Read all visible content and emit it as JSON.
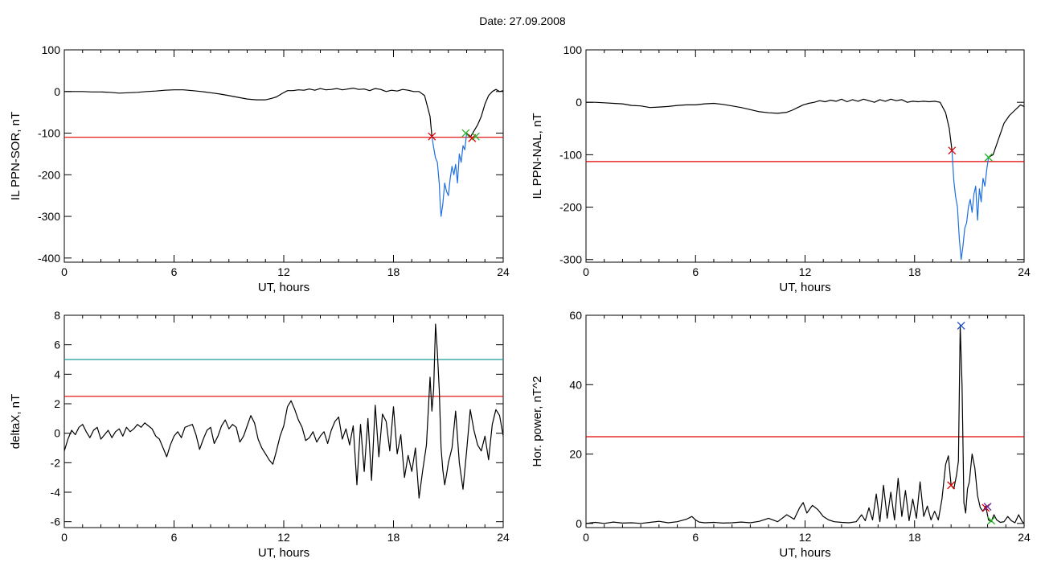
{
  "title": "Date:  27.09.2008",
  "chart_data": [
    {
      "id": "sor",
      "type": "line",
      "xlabel": "UT, hours",
      "ylabel": "IL PPN-SOR, nT",
      "xlim": [
        0,
        24
      ],
      "ylim": [
        -410,
        100
      ],
      "xticks": [
        0,
        6,
        12,
        18,
        24
      ],
      "yticks": [
        100,
        0,
        -100,
        -200,
        -300,
        -400
      ],
      "thresholds": [
        {
          "y": -110,
          "color": "#e00000"
        }
      ],
      "series": [
        {
          "color": "#000000",
          "x": [
            0,
            0.5,
            1,
            1.5,
            2,
            2.5,
            3,
            3.5,
            4,
            4.5,
            5,
            5.5,
            6,
            6.5,
            7,
            7.5,
            8,
            8.5,
            9,
            9.5,
            10,
            10.5,
            11,
            11.3,
            11.6,
            11.9,
            12.2,
            12.5,
            12.8,
            13.1,
            13.4,
            13.7,
            14,
            14.3,
            14.6,
            14.9,
            15.2,
            15.5,
            15.8,
            16.1,
            16.4,
            16.7,
            17,
            17.3,
            17.6,
            17.9,
            18.2,
            18.5,
            18.8,
            19.1,
            19.4,
            19.7,
            20,
            20.1
          ],
          "y": [
            0,
            0,
            0,
            -1,
            -1,
            -2,
            -4,
            -3,
            -2,
            0,
            1,
            3,
            4,
            4,
            2,
            0,
            -3,
            -6,
            -10,
            -14,
            -18,
            -20,
            -20,
            -17,
            -13,
            -5,
            2,
            2,
            4,
            3,
            6,
            3,
            7,
            4,
            5,
            7,
            4,
            6,
            8,
            5,
            6,
            2,
            7,
            5,
            0,
            3,
            1,
            5,
            3,
            0,
            0,
            -10,
            -60,
            -108
          ]
        },
        {
          "color": "#1f6fe0",
          "x": [
            20.1,
            20.2,
            20.3,
            20.4,
            20.5,
            20.55,
            20.6,
            20.7,
            20.8,
            20.9,
            21.0,
            21.1,
            21.2,
            21.3,
            21.4,
            21.5,
            21.6,
            21.7,
            21.8,
            21.9,
            22.0
          ],
          "y": [
            -108,
            -135,
            -160,
            -170,
            -220,
            -265,
            -300,
            -270,
            -220,
            -240,
            -250,
            -210,
            -180,
            -200,
            -175,
            -220,
            -150,
            -170,
            -130,
            -140,
            -100
          ]
        },
        {
          "color": "#000000",
          "x": [
            22.0,
            22.2,
            22.4,
            22.6,
            22.8,
            23.0,
            23.2,
            23.4,
            23.6,
            23.8,
            24
          ],
          "y": [
            -100,
            -110,
            -95,
            -80,
            -60,
            -30,
            -10,
            0,
            5,
            0,
            2
          ]
        }
      ],
      "markers": [
        {
          "x": 20.1,
          "y": -108,
          "color": "#e00000"
        },
        {
          "x": 21.95,
          "y": -100,
          "color": "#22b522"
        },
        {
          "x": 22.3,
          "y": -112,
          "color": "#e00000"
        },
        {
          "x": 22.5,
          "y": -108,
          "color": "#22b522"
        }
      ]
    },
    {
      "id": "nal",
      "type": "line",
      "xlabel": "UT, hours",
      "ylabel": "IL PPN-NAL, nT",
      "xlim": [
        0,
        24
      ],
      "ylim": [
        -305,
        100
      ],
      "xticks": [
        0,
        6,
        12,
        18,
        24
      ],
      "yticks": [
        100,
        0,
        -100,
        -200,
        -300
      ],
      "thresholds": [
        {
          "y": -113,
          "color": "#e00000"
        }
      ],
      "series": [
        {
          "color": "#000000",
          "x": [
            0,
            0.5,
            1,
            1.5,
            2,
            2.5,
            3,
            3.5,
            4,
            4.5,
            5,
            5.5,
            6,
            6.5,
            7,
            7.5,
            8,
            8.5,
            9,
            9.5,
            10,
            10.5,
            11,
            11.3,
            11.6,
            11.9,
            12.2,
            12.5,
            12.8,
            13.1,
            13.4,
            13.7,
            14,
            14.3,
            14.6,
            14.9,
            15.2,
            15.5,
            15.8,
            16.1,
            16.4,
            16.7,
            17,
            17.3,
            17.6,
            17.9,
            18.2,
            18.5,
            18.8,
            19.1,
            19.4,
            19.7,
            19.9,
            20.05
          ],
          "y": [
            0,
            0,
            -1,
            -2,
            -3,
            -6,
            -7,
            -10,
            -9,
            -8,
            -6,
            -5,
            -5,
            -3,
            -2,
            -4,
            -7,
            -10,
            -14,
            -18,
            -20,
            -21,
            -19,
            -15,
            -10,
            -5,
            -2,
            0,
            3,
            1,
            4,
            2,
            6,
            1,
            5,
            2,
            6,
            3,
            0,
            5,
            2,
            6,
            3,
            5,
            0,
            2,
            1,
            2,
            1,
            2,
            0,
            -20,
            -50,
            -92
          ]
        },
        {
          "color": "#1f6fe0",
          "x": [
            20.05,
            20.15,
            20.25,
            20.35,
            20.45,
            20.55,
            20.65,
            20.75,
            20.85,
            20.95,
            21.05,
            21.15,
            21.25,
            21.35,
            21.45,
            21.55,
            21.65,
            21.75,
            21.85,
            21.95,
            22.05
          ],
          "y": [
            -92,
            -150,
            -180,
            -200,
            -260,
            -300,
            -275,
            -240,
            -230,
            -200,
            -185,
            -210,
            -175,
            -160,
            -225,
            -165,
            -190,
            -145,
            -160,
            -130,
            -105
          ]
        },
        {
          "color": "#000000",
          "x": [
            22.05,
            22.3,
            22.6,
            22.9,
            23.2,
            23.5,
            23.8,
            24
          ],
          "y": [
            -105,
            -100,
            -70,
            -40,
            -25,
            -15,
            -5,
            -8
          ]
        }
      ],
      "markers": [
        {
          "x": 20.05,
          "y": -92,
          "color": "#e00000"
        },
        {
          "x": 22.05,
          "y": -105,
          "color": "#22b522"
        }
      ]
    },
    {
      "id": "deltax",
      "type": "line",
      "xlabel": "UT, hours",
      "ylabel": "deltaX, nT",
      "xlim": [
        0,
        24
      ],
      "ylim": [
        -6.4,
        8
      ],
      "xticks": [
        0,
        6,
        12,
        18,
        24
      ],
      "yticks": [
        8,
        6,
        4,
        2,
        0,
        -2,
        -4,
        -6
      ],
      "thresholds": [
        {
          "y": 5,
          "color": "#1a9a9a"
        },
        {
          "y": 2.5,
          "color": "#e00000"
        }
      ],
      "series": [
        {
          "color": "#000000",
          "x": [
            0,
            0.2,
            0.4,
            0.6,
            0.8,
            1.0,
            1.2,
            1.4,
            1.6,
            1.8,
            2.0,
            2.2,
            2.4,
            2.6,
            2.8,
            3.0,
            3.2,
            3.4,
            3.6,
            3.8,
            4.0,
            4.2,
            4.4,
            4.6,
            4.8,
            5.0,
            5.2,
            5.4,
            5.6,
            5.8,
            6.0,
            6.2,
            6.4,
            6.6,
            6.8,
            7.0,
            7.2,
            7.4,
            7.6,
            7.8,
            8.0,
            8.2,
            8.4,
            8.6,
            8.8,
            9.0,
            9.2,
            9.4,
            9.6,
            9.8,
            10.0,
            10.2,
            10.4,
            10.6,
            10.8,
            11.0,
            11.2,
            11.4,
            11.6,
            11.8,
            12.0,
            12.2,
            12.4,
            12.6,
            12.8,
            13.0,
            13.2,
            13.4,
            13.6,
            13.8,
            14.0,
            14.2,
            14.4,
            14.6,
            14.8,
            15.0,
            15.2,
            15.4,
            15.6,
            15.8,
            16.0,
            16.2,
            16.4,
            16.6,
            16.8,
            17.0,
            17.2,
            17.4,
            17.6,
            17.8,
            18.0,
            18.2,
            18.4,
            18.6,
            18.8,
            19.0,
            19.2,
            19.4,
            19.6,
            19.8,
            20.0,
            20.1,
            20.2,
            20.3,
            20.4,
            20.5,
            20.6,
            20.7,
            20.8,
            20.9,
            21.0,
            21.2,
            21.4,
            21.6,
            21.8,
            22.0,
            22.2,
            22.4,
            22.6,
            22.8,
            23.0,
            23.2,
            23.4,
            23.6,
            23.8,
            24.0
          ],
          "y": [
            -1.2,
            -0.4,
            0.2,
            -0.1,
            0.4,
            0.6,
            0.1,
            -0.3,
            0.2,
            0.4,
            -0.4,
            -0.1,
            0.2,
            -0.3,
            0.1,
            0.3,
            -0.2,
            0.4,
            0.1,
            0.3,
            0.6,
            0.4,
            0.7,
            0.5,
            0.3,
            -0.2,
            -0.4,
            -1.0,
            -1.6,
            -0.8,
            -0.2,
            0.1,
            -0.3,
            0.4,
            0.5,
            0.6,
            -0.1,
            -1.1,
            -0.4,
            0.2,
            0.4,
            -0.7,
            -0.2,
            0.5,
            0.9,
            0.3,
            0.6,
            0.4,
            -0.6,
            -0.2,
            0.5,
            1.2,
            0.7,
            -0.4,
            -1.0,
            -1.4,
            -1.8,
            -2.1,
            -1.2,
            -0.2,
            0.5,
            1.8,
            2.2,
            1.6,
            0.9,
            0.4,
            -0.5,
            -0.3,
            0.1,
            -0.6,
            -0.2,
            0.1,
            -0.7,
            0.2,
            0.8,
            1.1,
            -0.4,
            0.3,
            -0.8,
            0.5,
            -3.5,
            0.6,
            -2.6,
            1.0,
            -3.2,
            1.9,
            -1.6,
            1.3,
            0.8,
            -1.2,
            1.8,
            -1.4,
            -0.1,
            -3.0,
            -1.5,
            -2.6,
            -1.0,
            -4.4,
            -2.5,
            -0.8,
            3.8,
            1.5,
            3.0,
            7.4,
            5.5,
            3.0,
            -1.0,
            -2.5,
            -3.5,
            -2.8,
            -2.0,
            -1.0,
            1.5,
            -2.0,
            -3.8,
            -1.2,
            1.6,
            0.2,
            -0.8,
            -1.2,
            -0.2,
            -1.8,
            0.6,
            1.6,
            1.2,
            -0.2
          ]
        }
      ],
      "markers": []
    },
    {
      "id": "power",
      "type": "line",
      "xlabel": "UT, hours",
      "ylabel": "Hor. power, nT^2",
      "xlim": [
        0,
        24
      ],
      "ylim": [
        -1.2,
        60
      ],
      "xticks": [
        0,
        6,
        12,
        18,
        24
      ],
      "yticks": [
        60,
        40,
        20,
        0
      ],
      "thresholds": [
        {
          "y": 25,
          "color": "#e00000"
        }
      ],
      "series": [
        {
          "color": "#000000",
          "x": [
            0,
            0.5,
            1,
            1.5,
            2,
            2.5,
            3,
            3.5,
            4,
            4.5,
            5,
            5.5,
            5.8,
            6.0,
            6.2,
            6.5,
            7,
            7.5,
            8,
            8.5,
            9,
            9.5,
            10,
            10.5,
            11,
            11.4,
            11.7,
            11.9,
            12.1,
            12.4,
            12.7,
            13.0,
            13.3,
            13.6,
            14.0,
            14.4,
            14.8,
            15.1,
            15.3,
            15.5,
            15.7,
            15.9,
            16.1,
            16.3,
            16.5,
            16.7,
            16.9,
            17.1,
            17.3,
            17.5,
            17.7,
            17.9,
            18.1,
            18.3,
            18.5,
            18.7,
            18.9,
            19.1,
            19.3,
            19.5,
            19.7,
            19.85,
            20.0,
            20.15,
            20.3,
            20.4,
            20.5,
            20.6,
            20.7,
            20.8,
            20.9,
            21.0,
            21.15,
            21.3,
            21.45,
            21.6,
            21.75,
            21.9,
            22.05,
            22.2,
            22.35,
            22.5,
            22.7,
            22.9,
            23.1,
            23.3,
            23.5,
            23.7,
            23.9,
            24.0
          ],
          "y": [
            0,
            0.3,
            0,
            0.4,
            0.1,
            0.2,
            0,
            0.3,
            0.6,
            0.2,
            0.5,
            1.2,
            2.0,
            1.0,
            0.4,
            0.2,
            0.3,
            0.1,
            0.2,
            0.4,
            0.2,
            0.6,
            1.5,
            0.5,
            2.5,
            1.2,
            4.5,
            6.0,
            3.0,
            5.2,
            4.0,
            2.0,
            1.0,
            0.5,
            0.3,
            0.2,
            0.5,
            2.5,
            0.8,
            4.5,
            1.0,
            8.5,
            0.5,
            11.0,
            1.5,
            9.0,
            1.0,
            13.0,
            2.0,
            9.5,
            0.8,
            7.0,
            1.5,
            12.0,
            2.0,
            5.0,
            1.0,
            3.5,
            1.0,
            7.0,
            17.0,
            19.5,
            11.0,
            10.0,
            14.0,
            18.0,
            57.0,
            40.0,
            6.0,
            3.0,
            10.0,
            12.0,
            20.0,
            16.0,
            8.0,
            4.5,
            3.5,
            5.0,
            1.0,
            0.5,
            2.5,
            1.0,
            0.3,
            0.5,
            2.0,
            0.8,
            0.2,
            2.5,
            0.5,
            0.0
          ]
        }
      ],
      "markers": [
        {
          "x": 20.55,
          "y": 57.0,
          "color": "#1f4fd0"
        },
        {
          "x": 20.0,
          "y": 11.0,
          "color": "#e00000"
        },
        {
          "x": 21.9,
          "y": 4.5,
          "color": "#e00000"
        },
        {
          "x": 22.0,
          "y": 4.8,
          "color": "#6a2aa0"
        },
        {
          "x": 22.2,
          "y": 0.8,
          "color": "#22b522"
        }
      ]
    }
  ]
}
